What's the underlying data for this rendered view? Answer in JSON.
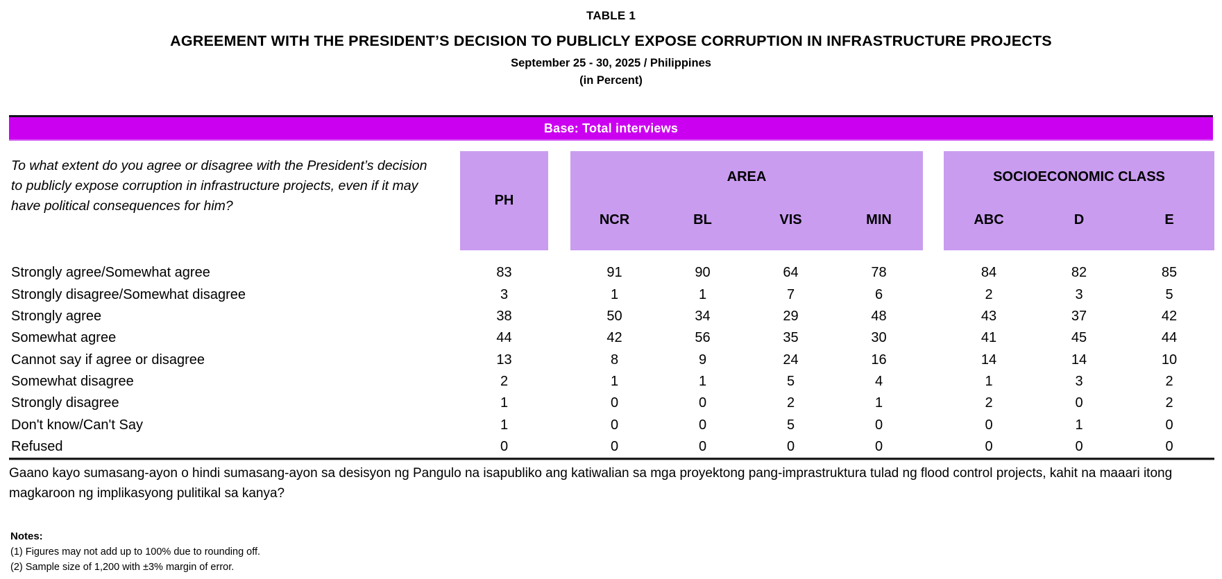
{
  "title": {
    "table_no": "TABLE 1",
    "main": "AGREEMENT WITH THE PRESIDENT’S DECISION TO PUBLICLY EXPOSE CORRUPTION IN INFRASTRUCTURE PROJECTS",
    "period": "September 25 - 30, 2025 / Philippines",
    "unit": "(in Percent)"
  },
  "base_bar": {
    "label": "Base: Total interviews"
  },
  "colors": {
    "base_bar_background": "#CC00F0",
    "base_bar_text": "#ffffff",
    "header_block_background": "#C99CF0",
    "rule_color": "#1c1c1c"
  },
  "header": {
    "question": "To what extent do you agree or disagree with the President’s decision to publicly expose corruption in infrastructure projects, even if it may have political consequences for him?",
    "ph_label": "PH",
    "area_label": "AREA",
    "area_columns": [
      "NCR",
      "BL",
      "VIS",
      "MIN"
    ],
    "sec_label": "SOCIOECONOMIC CLASS",
    "sec_columns": [
      "ABC",
      "D",
      "E"
    ]
  },
  "table": {
    "columns": [
      "PH",
      "NCR",
      "BL",
      "VIS",
      "MIN",
      "ABC",
      "D",
      "E"
    ],
    "rows": [
      {
        "label": "Strongly agree/Somewhat agree",
        "values": [
          83,
          91,
          90,
          64,
          78,
          84,
          82,
          85
        ]
      },
      {
        "label": "Strongly disagree/Somewhat disagree",
        "values": [
          3,
          1,
          1,
          7,
          6,
          2,
          3,
          5
        ]
      },
      {
        "label": "Strongly agree",
        "values": [
          38,
          50,
          34,
          29,
          48,
          43,
          37,
          42
        ]
      },
      {
        "label": "Somewhat agree",
        "values": [
          44,
          42,
          56,
          35,
          30,
          41,
          45,
          44
        ]
      },
      {
        "label": "Cannot say if agree or disagree",
        "values": [
          13,
          8,
          9,
          24,
          16,
          14,
          14,
          10
        ]
      },
      {
        "label": "Somewhat disagree",
        "values": [
          2,
          1,
          1,
          5,
          4,
          1,
          3,
          2
        ]
      },
      {
        "label": "Strongly disagree",
        "values": [
          1,
          0,
          0,
          2,
          1,
          2,
          0,
          2
        ]
      },
      {
        "label": "Don't know/Can't Say",
        "values": [
          1,
          0,
          0,
          5,
          0,
          0,
          1,
          0
        ]
      },
      {
        "label": "Refused",
        "values": [
          0,
          0,
          0,
          0,
          0,
          0,
          0,
          0
        ]
      }
    ]
  },
  "question_filipino": "Gaano kayo sumasang-ayon o hindi sumasang-ayon sa desisyon ng Pangulo na isapubliko ang katiwalian sa mga proyektong pang-imprastruktura tulad ng flood control projects, kahit na maaari itong magkaroon ng implikasyong pulitikal sa kanya?",
  "notes": {
    "heading": "Notes:",
    "items": [
      "(1) Figures may not add up to 100% due to rounding off.",
      "(2) Sample size of 1,200 with ±3% margin of error."
    ]
  }
}
